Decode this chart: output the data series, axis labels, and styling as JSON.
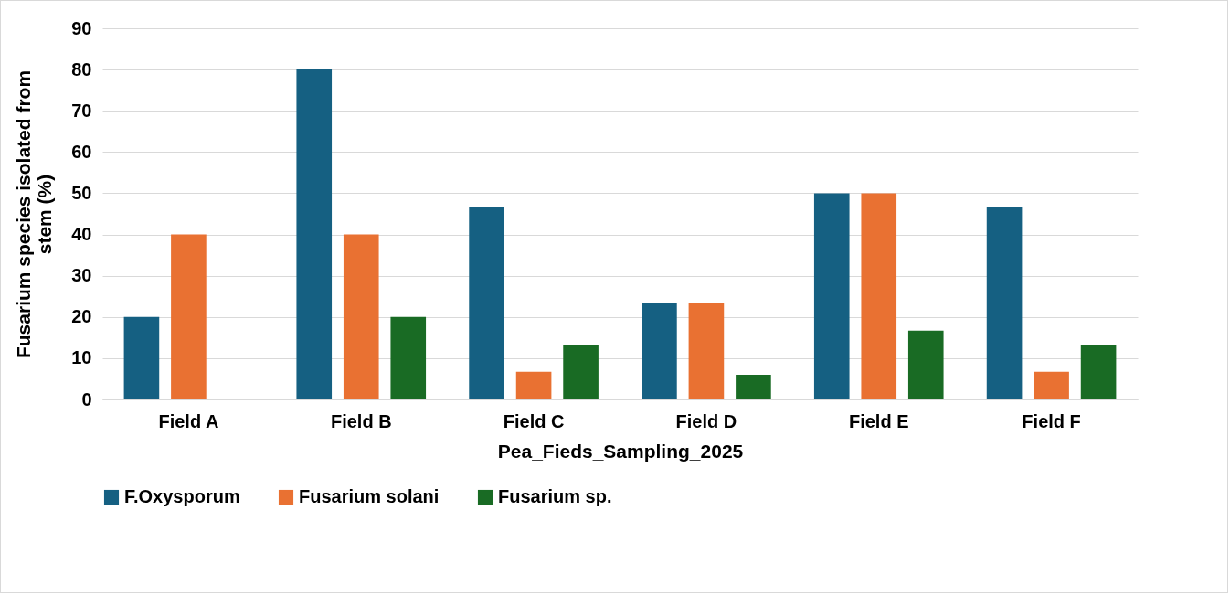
{
  "chart_data": {
    "type": "bar",
    "xlabel": "Pea_Fieds_Sampling_2025",
    "ylabel": "Fusarium species isolated from stem (%)",
    "categories": [
      "Field A",
      "Field B",
      "Field C",
      "Field D",
      "Field E",
      "Field F"
    ],
    "series": [
      {
        "name": "F.Oxysporum",
        "color": "#156082",
        "values": [
          20,
          80,
          46.7,
          23.5,
          50,
          46.7
        ]
      },
      {
        "name": "Fusarium solani",
        "color": "#e97132",
        "values": [
          40,
          40,
          6.7,
          23.5,
          50,
          6.7
        ]
      },
      {
        "name": "Fusarium sp.",
        "color": "#196b24",
        "values": [
          0,
          20,
          13.3,
          6,
          16.7,
          13.3
        ]
      }
    ],
    "ylim": [
      0,
      90
    ],
    "yticks": [
      0,
      10,
      20,
      30,
      40,
      50,
      60,
      70,
      80,
      90
    ],
    "grid": "y",
    "legend": "bottom"
  }
}
